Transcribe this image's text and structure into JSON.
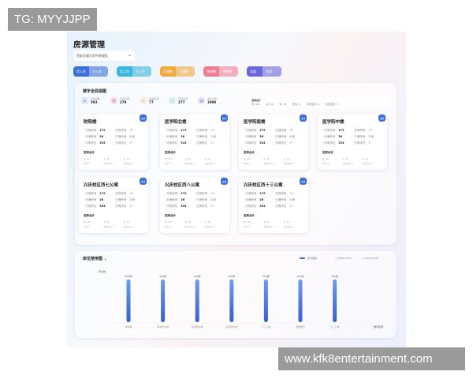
{
  "watermarks": {
    "top": "TG: MYYJJPP",
    "bottom": "www.kfk8entertainment.com"
  },
  "page": {
    "title": "房源管理",
    "campus_select": "西安交通大学兴庆校区"
  },
  "tabs": [
    {
      "label": "男入住",
      "sub": "已入住",
      "color": "#3d6fd8"
    },
    {
      "label": "女入住",
      "sub": "已入住",
      "color": "#3bb5d9"
    },
    {
      "label": "可调整",
      "sub": "可调整",
      "color": "#f2a93b"
    },
    {
      "label": "待调整",
      "sub": "待调整",
      "color": "#ee7d92"
    },
    {
      "label": "全部",
      "sub": "全部",
      "color": "#6b67d8"
    }
  ],
  "overview": {
    "title": "楼宇全局视图",
    "stats": [
      {
        "label": "房间总数",
        "value": "593",
        "icon": "home-icon",
        "color": "#3d6fd8"
      },
      {
        "label": "已住房间",
        "value": "279",
        "icon": "building-icon",
        "color": "#e25b74"
      },
      {
        "label": "未满房间",
        "value": "77",
        "icon": "house-icon",
        "color": "#f2a93b"
      },
      {
        "label": "空闲房间",
        "value": "277",
        "icon": "bed-icon",
        "color": "#3bc0a5"
      },
      {
        "label": "床位总数",
        "value": "2098",
        "icon": "chart-icon",
        "color": "#6b67d8"
      }
    ],
    "total": {
      "title": "空床合计",
      "items": [
        "男: 401",
        "女: 46",
        "未: 34",
        "男性: 2",
        "男性空床: 4",
        "女性空床: 3"
      ]
    }
  },
  "card_labels": {
    "a": "可用房间",
    "b": "未满房间",
    "c": "可用床位",
    "d": "空闲房间",
    "e": "已满房间",
    "f": "空闲床位",
    "sub": "空床合计",
    "badge": "管理",
    "g": [
      "男: 401",
      "女: 46",
      "未: 34",
      "男性: 2",
      "男性空床: 4",
      "女性空床: 3"
    ]
  },
  "buildings": [
    {
      "name": "财院楼",
      "a": "172",
      "b": "26",
      "c": "324",
      "d": "16",
      "e": "108",
      "f": "57"
    },
    {
      "name": "医学院北楼",
      "a": "172",
      "b": "26",
      "c": "324",
      "d": "16",
      "e": "108",
      "f": "57"
    },
    {
      "name": "医学院南楼",
      "a": "172",
      "b": "26",
      "c": "324",
      "d": "16",
      "e": "108",
      "f": "57"
    },
    {
      "name": "医学院中楼",
      "a": "172",
      "b": "26",
      "c": "324",
      "d": "16",
      "e": "108",
      "f": "57"
    },
    {
      "name": "兴庆校区西七公寓",
      "a": "172",
      "b": "26",
      "c": "324",
      "d": "16",
      "e": "108",
      "f": "57"
    },
    {
      "name": "兴庆校区西八公寓",
      "a": "172",
      "b": "26",
      "c": "324",
      "d": "16",
      "e": "108",
      "f": "57"
    },
    {
      "name": "兴庆校区西十三公寓",
      "a": "172",
      "b": "26",
      "c": "324",
      "d": "16",
      "e": "108",
      "f": "57"
    }
  ],
  "chart_data": {
    "type": "bar",
    "title": "床位使用图",
    "ylabel": "床位数",
    "xlabel": "楼宇名称",
    "legend": "床位使用",
    "legend_position": "top-right",
    "date_from": "2022.10.27",
    "date_to": "2022.10.27",
    "categories": [
      "财院楼",
      "医学院北楼",
      "医学院南楼",
      "医学院中楼",
      "十三公寓",
      "西部楼宇",
      "十三公寓"
    ],
    "values": [
      200,
      200,
      200,
      200,
      200,
      200,
      200
    ],
    "value_labels": [
      "200床",
      "200床",
      "200床",
      "200床",
      "200床",
      "200床",
      "200床"
    ],
    "ylim": [
      0,
      240
    ],
    "color": "#3d6fd8"
  }
}
